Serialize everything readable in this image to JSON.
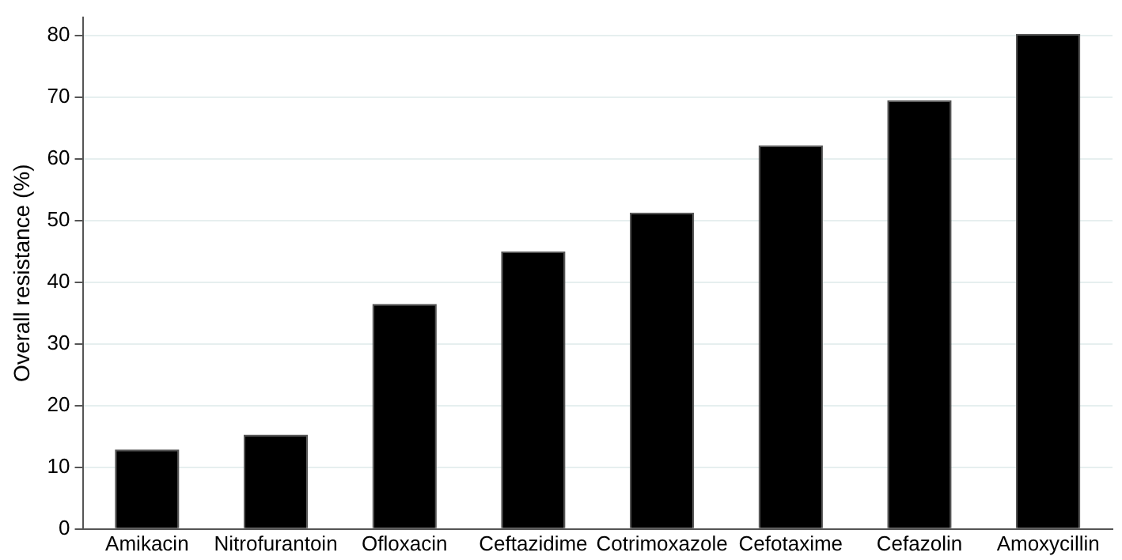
{
  "chart_data": {
    "type": "bar",
    "ylabel": "Overall resistance (%)",
    "categories": [
      "Amikacin",
      "Nitrofurantoin",
      "Ofloxacin",
      "Ceftazidime",
      "Cotrimoxazole",
      "Cefotaxime",
      "Cefazolin",
      "Amoxycillin"
    ],
    "values": [
      12.9,
      15.3,
      36.5,
      45.0,
      51.3,
      62.2,
      69.5,
      80.3
    ],
    "color": "#000000",
    "ylim": [
      0,
      83
    ],
    "yticks": [
      0,
      10,
      20,
      30,
      40,
      50,
      60,
      70,
      80
    ],
    "grid": "y",
    "legend": false
  }
}
